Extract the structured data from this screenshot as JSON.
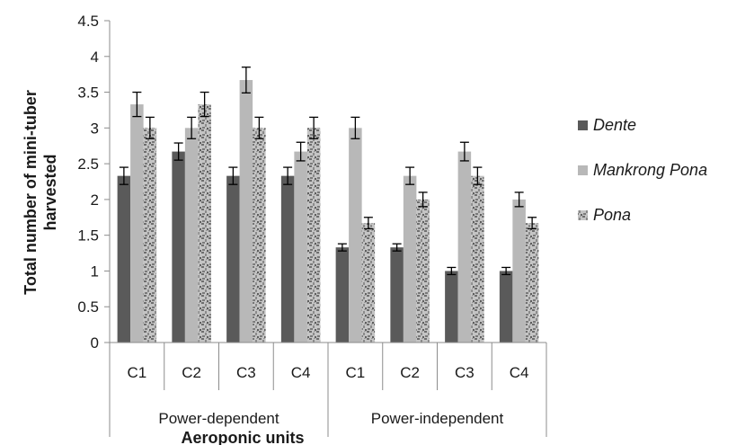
{
  "chart_data": {
    "type": "bar",
    "title": "",
    "xlabel": "Aeroponic units",
    "ylabel": "Total number of mini-tuber harvested",
    "ylim": [
      0,
      4.5
    ],
    "y_ticks": [
      "0",
      "0.5",
      "1",
      "1.5",
      "2",
      "2.5",
      "3",
      "3.5",
      "4",
      "4.5"
    ],
    "groups": [
      {
        "label": "Power-dependent",
        "categories": [
          "C1",
          "C2",
          "C3",
          "C4"
        ]
      },
      {
        "label": "Power-independent",
        "categories": [
          "C1",
          "C2",
          "C3",
          "C4"
        ]
      }
    ],
    "series": [
      {
        "name": "Dente",
        "color": "#5a5a5a",
        "pattern": "solid",
        "values": [
          2.33,
          2.67,
          2.33,
          2.33,
          1.33,
          1.33,
          1.0,
          1.0
        ],
        "errors": [
          0.12,
          0.12,
          0.12,
          0.12,
          0.05,
          0.05,
          0.05,
          0.05
        ]
      },
      {
        "name": "Mankrong Pona",
        "color": "#b8b8b8",
        "pattern": "solid",
        "values": [
          3.33,
          3.0,
          3.67,
          2.67,
          3.0,
          2.33,
          2.67,
          2.0
        ],
        "errors": [
          0.17,
          0.15,
          0.18,
          0.13,
          0.15,
          0.12,
          0.13,
          0.1
        ]
      },
      {
        "name": "Pona",
        "color": "#9a9a9a",
        "pattern": "mottled",
        "values": [
          3.0,
          3.33,
          3.0,
          3.0,
          1.67,
          2.0,
          2.33,
          1.67
        ],
        "errors": [
          0.15,
          0.17,
          0.15,
          0.15,
          0.08,
          0.1,
          0.12,
          0.08
        ]
      }
    ],
    "legend": {
      "position": "right"
    },
    "grid": false
  }
}
